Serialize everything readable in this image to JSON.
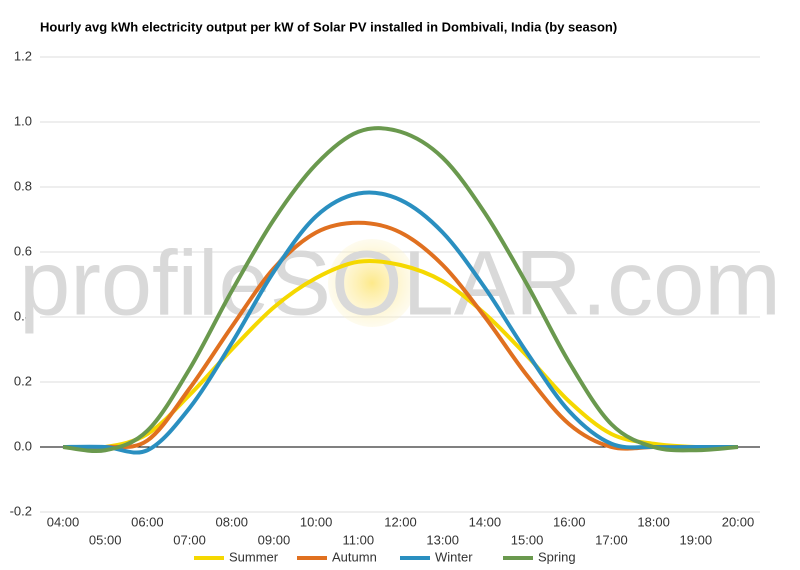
{
  "chart_data": {
    "type": "line",
    "title": "Hourly avg kWh electricity output per kW of Solar PV installed in Dombivali, India (by season)",
    "watermark": "profileSOLAR.com",
    "categories": [
      "04:00",
      "05:00",
      "06:00",
      "07:00",
      "08:00",
      "09:00",
      "10:00",
      "11:00",
      "12:00",
      "13:00",
      "14:00",
      "15:00",
      "16:00",
      "17:00",
      "18:00",
      "19:00",
      "20:00"
    ],
    "series": [
      {
        "name": "Summer",
        "color": "#f5d800",
        "values": [
          0,
          0,
          0.04,
          0.16,
          0.3,
          0.43,
          0.52,
          0.57,
          0.56,
          0.51,
          0.41,
          0.28,
          0.14,
          0.04,
          0.01,
          0,
          0
        ]
      },
      {
        "name": "Autumn",
        "color": "#e07020",
        "values": [
          0,
          0,
          0.02,
          0.18,
          0.37,
          0.55,
          0.66,
          0.69,
          0.66,
          0.56,
          0.4,
          0.22,
          0.07,
          0,
          0,
          0,
          0
        ]
      },
      {
        "name": "Winter",
        "color": "#2a8fc0",
        "values": [
          0,
          0,
          -0.01,
          0.12,
          0.32,
          0.54,
          0.71,
          0.78,
          0.76,
          0.66,
          0.49,
          0.29,
          0.11,
          0.01,
          0,
          0,
          0
        ]
      },
      {
        "name": "Spring",
        "color": "#6a994e",
        "values": [
          0,
          -0.01,
          0.05,
          0.24,
          0.48,
          0.7,
          0.87,
          0.97,
          0.97,
          0.89,
          0.72,
          0.5,
          0.26,
          0.07,
          0,
          -0.01,
          0
        ]
      }
    ],
    "ylim": [
      -0.2,
      1.2
    ],
    "yticks": [
      1.2,
      {
        "value": 1,
        "label": "1.0"
      },
      0.8,
      0.6,
      0.4,
      0.2,
      {
        "value": 0,
        "label": "0.0"
      },
      -0.2
    ],
    "grid": true,
    "legend": "bottom"
  }
}
